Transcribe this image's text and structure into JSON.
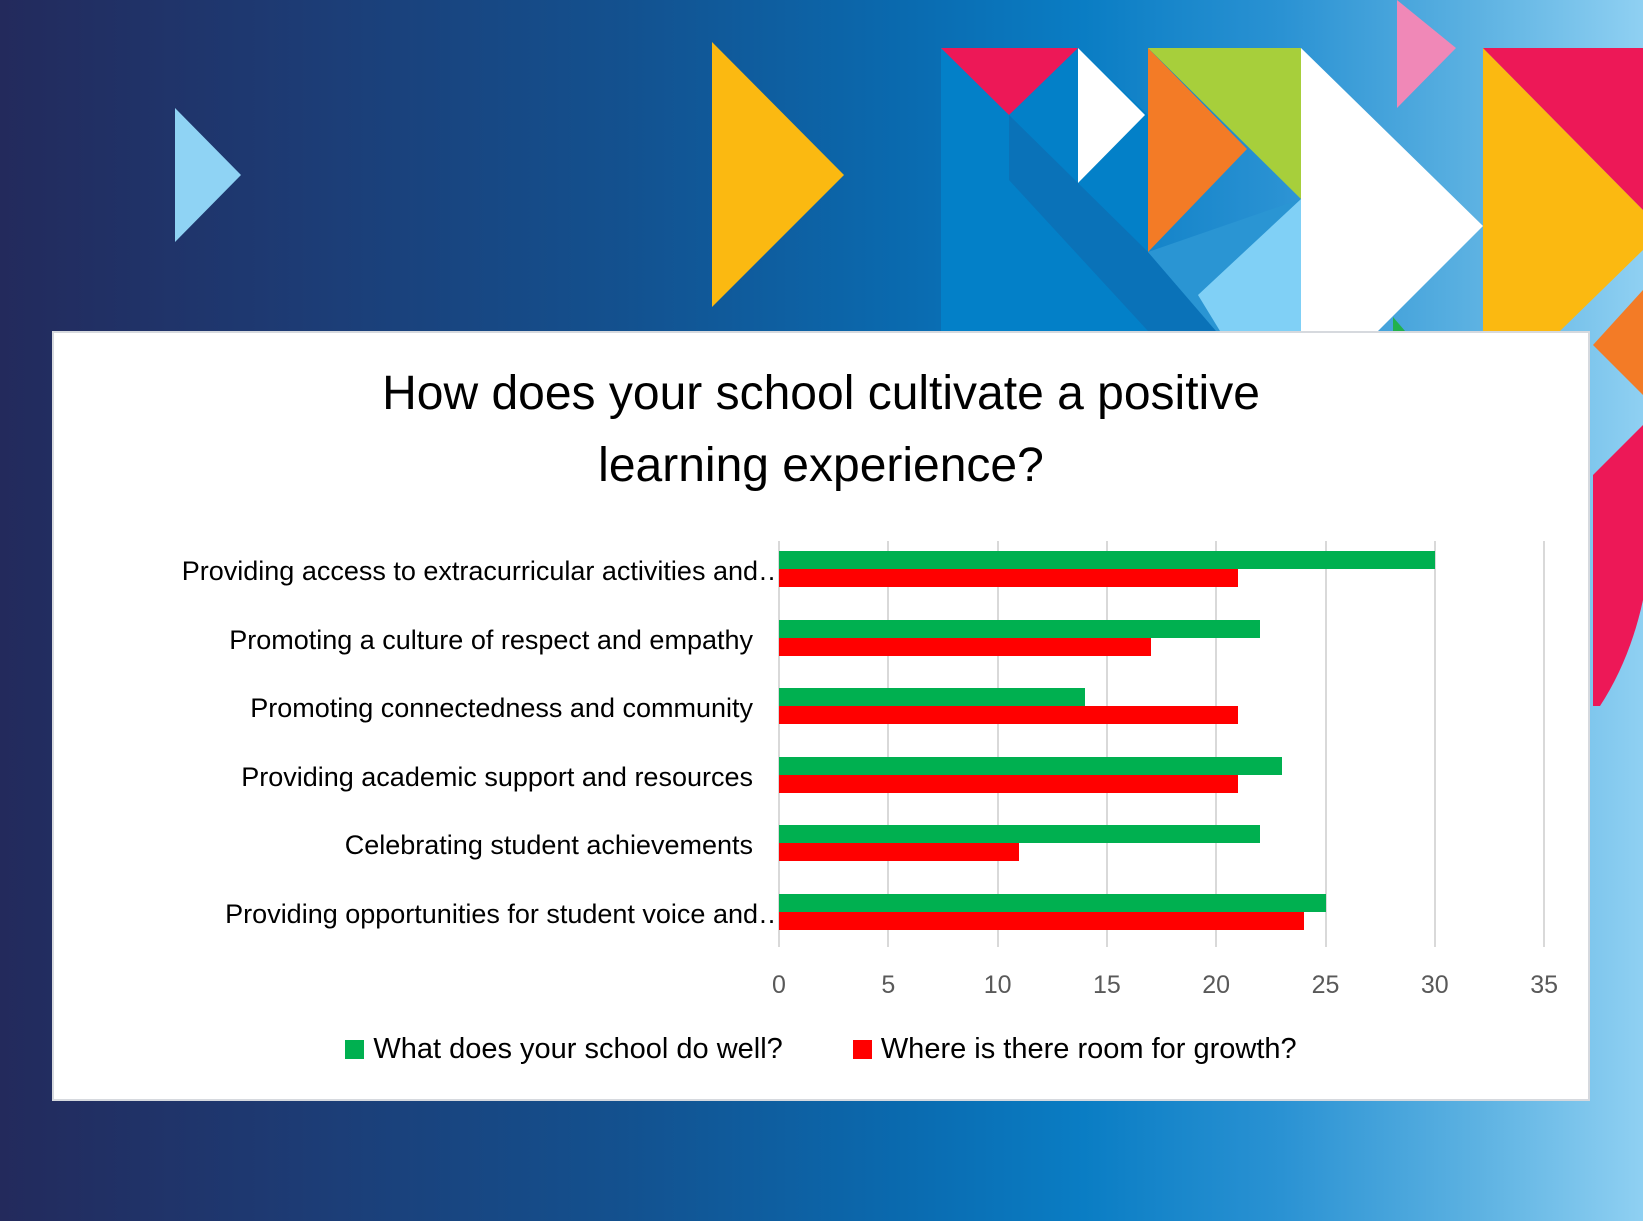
{
  "slide": {
    "background_gradient": [
      "#232a5c",
      "#13518f",
      "#0a7dc4",
      "#8fd0f2"
    ],
    "decor_colors": {
      "light_blue": "#8fd3f4",
      "yellow": "#fbb911",
      "red": "#ed1857",
      "pink": "#f088b7",
      "green": "#a7cf3b",
      "orange": "#f37b26",
      "white": "#ffffff",
      "blue": "#0380c8"
    }
  },
  "chart_data": {
    "type": "bar",
    "orientation": "horizontal",
    "title": "How does your school cultivate a positive learning experience?",
    "title_lines": [
      "How does your school cultivate a positive",
      "learning experience?"
    ],
    "categories": [
      "Providing access to extracurricular activities and…",
      "Promoting a culture of respect and empathy",
      "Promoting connectedness and community",
      "Providing academic support and resources",
      "Celebrating student achievements",
      "Providing opportunities for student voice and…"
    ],
    "series": [
      {
        "name": "What does your school do well?",
        "color": "#00b050",
        "values": [
          30,
          22,
          14,
          23,
          22,
          25
        ]
      },
      {
        "name": "Where is there room for growth?",
        "color": "#ff0000",
        "values": [
          21,
          17,
          21,
          21,
          11,
          24
        ]
      }
    ],
    "xlabel": "",
    "ylabel": "",
    "xlim": [
      0,
      35
    ],
    "xticks": [
      "0",
      "5",
      "10",
      "15",
      "20",
      "25",
      "30",
      "35"
    ],
    "grid": true,
    "legend_position": "bottom"
  }
}
